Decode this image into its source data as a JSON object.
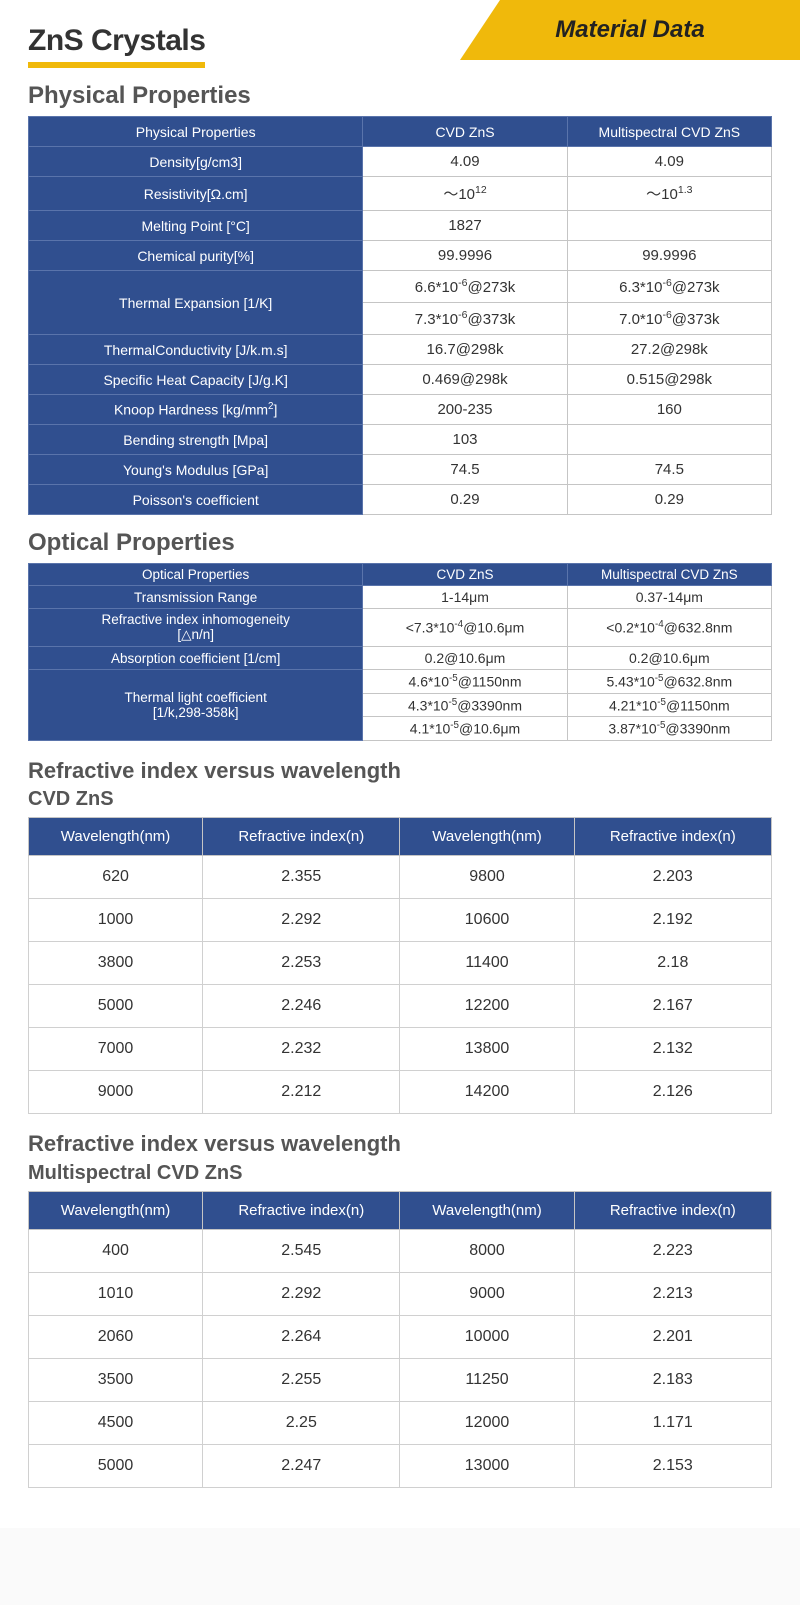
{
  "header": {
    "title": "ZnS Crystals",
    "badge": "Material Data",
    "underline_color": "#f0b90b",
    "badge_color": "#f0b90b",
    "title_color": "#333333"
  },
  "colors": {
    "table_header_bg": "#304f8f",
    "table_header_fg": "#ffffff",
    "border": "#c5c5c5",
    "section_title": "#555555",
    "page_bg": "#ffffff"
  },
  "physical": {
    "title": "Physical Properties",
    "columns": [
      "Physical Properties",
      "CVD ZnS",
      "Multispectral CVD ZnS"
    ],
    "col_widths_pct": [
      45,
      27.5,
      27.5
    ],
    "rows": [
      {
        "label": "Density[g/cm3]",
        "cvd": "4.09",
        "ms": "4.09"
      },
      {
        "label_html": "Resistivity[Ω.cm]",
        "cvd_html": "～10<sup>12</sup>",
        "ms_html": "～10<sup>1.3</sup>"
      },
      {
        "label": "Melting Point [°C]",
        "cvd": "1827",
        "ms": ""
      },
      {
        "label": "Chemical purity[%]",
        "cvd": "99.9996",
        "ms": "99.9996"
      },
      {
        "label": "Thermal Expansion [1/K]",
        "rowspan": 2,
        "sub": [
          {
            "cvd_html": "6.6*10<sup>-6</sup>@273k",
            "ms_html": "6.3*10<sup>-6</sup>@273k"
          },
          {
            "cvd_html": "7.3*10<sup>-6</sup>@373k",
            "ms_html": "7.0*10<sup>-6</sup>@373k"
          }
        ]
      },
      {
        "label": "ThermalConductivity [J/k.m.s]",
        "cvd": "16.7@298k",
        "ms": "27.2@298k"
      },
      {
        "label": "Specific Heat Capacity [J/g.K]",
        "cvd": "0.469@298k",
        "ms": "0.515@298k"
      },
      {
        "label_html": "Knoop Hardness [kg/mm<sup>2</sup>]",
        "cvd": "200-235",
        "ms": "160"
      },
      {
        "label": "Bending strength [Mpa]",
        "cvd": "103",
        "ms": ""
      },
      {
        "label": "Young's Modulus [GPa]",
        "cvd": "74.5",
        "ms": "74.5"
      },
      {
        "label": "Poisson's coefficient",
        "cvd": "0.29",
        "ms": "0.29"
      }
    ]
  },
  "optical": {
    "title": "Optical Properties",
    "columns": [
      "Optical Properties",
      "CVD ZnS",
      "Multispectral CVD ZnS"
    ],
    "col_widths_pct": [
      45,
      27.5,
      27.5
    ],
    "rows": [
      {
        "label": "Transmission Range",
        "cvd": "1-14μm",
        "ms": "0.37-14μm"
      },
      {
        "label_html": "Refractive index inhomogeneity<br>[△n/n]",
        "cvd_html": "<7.3*10<sup>-4</sup>@10.6μm",
        "ms_html": "<0.2*10<sup>-4</sup>@632.8nm"
      },
      {
        "label": "Absorption coefficient [1/cm]",
        "cvd": "0.2@10.6μm",
        "ms": "0.2@10.6μm"
      },
      {
        "label_html": "Thermal light coefficient<br>[1/k,298-358k]",
        "rowspan": 3,
        "sub": [
          {
            "cvd_html": "4.6*10<sup>-5</sup>@1150nm",
            "ms_html": "5.43*10<sup>-5</sup>@632.8nm"
          },
          {
            "cvd_html": "4.3*10<sup>-5</sup>@3390nm",
            "ms_html": "4.21*10<sup>-5</sup>@1150nm"
          },
          {
            "cvd_html": "4.1*10<sup>-5</sup>@10.6μm",
            "ms_html": "3.87*10<sup>-5</sup>@3390nm"
          }
        ]
      }
    ]
  },
  "ri_cvd": {
    "title": "Refractive index versus wavelength",
    "subtitle": "CVD ZnS",
    "columns": [
      "Wavelength(nm)",
      "Refractive index(n)",
      "Wavelength(nm)",
      "Refractive index(n)"
    ],
    "rows": [
      [
        "620",
        "2.355",
        "9800",
        "2.203"
      ],
      [
        "1000",
        "2.292",
        "10600",
        "2.192"
      ],
      [
        "3800",
        "2.253",
        "11400",
        "2.18"
      ],
      [
        "5000",
        "2.246",
        "12200",
        "2.167"
      ],
      [
        "7000",
        "2.232",
        "13800",
        "2.132"
      ],
      [
        "9000",
        "2.212",
        "14200",
        "2.126"
      ]
    ]
  },
  "ri_ms": {
    "title": "Refractive index versus wavelength",
    "subtitle": "Multispectral CVD ZnS",
    "columns": [
      "Wavelength(nm)",
      "Refractive index(n)",
      "Wavelength(nm)",
      "Refractive index(n)"
    ],
    "rows": [
      [
        "400",
        "2.545",
        "8000",
        "2.223"
      ],
      [
        "1010",
        "2.292",
        "9000",
        "2.213"
      ],
      [
        "2060",
        "2.264",
        "10000",
        "2.201"
      ],
      [
        "3500",
        "2.255",
        "11250",
        "2.183"
      ],
      [
        "4500",
        "2.25",
        "12000",
        "1.171"
      ],
      [
        "5000",
        "2.247",
        "13000",
        "2.153"
      ]
    ]
  }
}
